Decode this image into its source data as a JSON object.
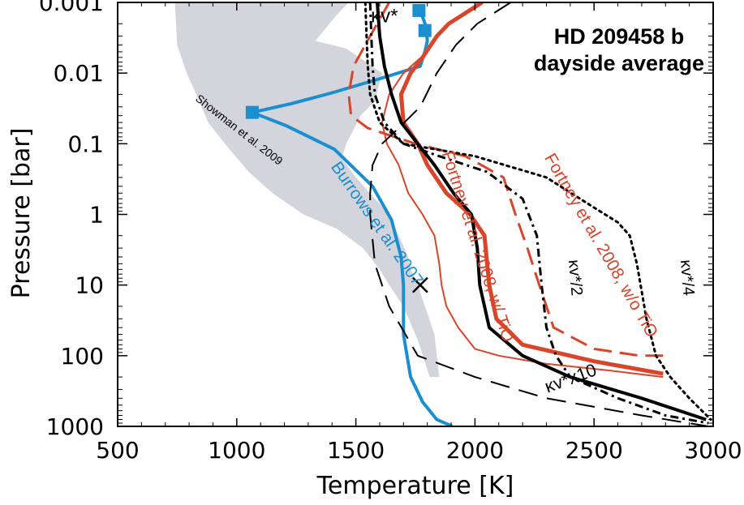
{
  "chart_data": {
    "type": "line",
    "title": "HD 209458 b",
    "subtitle": "dayside average",
    "xlabel": "Temperature [K]",
    "ylabel": "Pressure [bar]",
    "xlim": [
      500,
      3000
    ],
    "ylim": [
      0.001,
      1000
    ],
    "yscale": "log",
    "y_reversed": true,
    "xticks": [
      500,
      1000,
      1500,
      2000,
      2500,
      3000
    ],
    "xtick_labels": [
      "500",
      "1000",
      "1500",
      "2000",
      "2500",
      "3000"
    ],
    "yticks": [
      0.001,
      0.01,
      0.1,
      1,
      10,
      100,
      1000
    ],
    "ytick_labels": [
      "0.001",
      "0.01",
      "0.1",
      "1",
      "10",
      "100",
      "1000"
    ],
    "grid": false,
    "legend": "none",
    "colors": {
      "red": "#d9452a",
      "blue": "#1a8fd0",
      "black": "#000000",
      "gray": "#d4d4dc"
    },
    "shaded_region": {
      "label": "Showman et al. 2009",
      "color": "#d4d4dc",
      "polygon": [
        [
          740,
          0.001
        ],
        [
          1470,
          0.001
        ],
        [
          1420,
          0.0015
        ],
        [
          1330,
          0.0035
        ],
        [
          1460,
          0.0045
        ],
        [
          1610,
          0.01
        ],
        [
          1580,
          0.025
        ],
        [
          1520,
          0.04
        ],
        [
          1460,
          0.1
        ],
        [
          1440,
          0.16
        ],
        [
          1500,
          0.3
        ],
        [
          1580,
          0.6
        ],
        [
          1640,
          1
        ],
        [
          1680,
          2
        ],
        [
          1720,
          4
        ],
        [
          1730,
          6
        ],
        [
          1760,
          10
        ],
        [
          1800,
          25
        ],
        [
          1830,
          50
        ],
        [
          1840,
          100
        ],
        [
          1850,
          200
        ],
        [
          1810,
          200
        ],
        [
          1760,
          60
        ],
        [
          1700,
          20
        ],
        [
          1640,
          10
        ],
        [
          1600,
          6
        ],
        [
          1530,
          3
        ],
        [
          1420,
          1.6
        ],
        [
          1280,
          1
        ],
        [
          1150,
          0.5
        ],
        [
          1050,
          0.25
        ],
        [
          950,
          0.1
        ],
        [
          880,
          0.05
        ],
        [
          830,
          0.02
        ],
        [
          790,
          0.01
        ],
        [
          750,
          0.004
        ]
      ]
    },
    "series": [
      {
        "name": "Burrows et al. 2007",
        "color": "#1a8fd0",
        "width": 4,
        "dash": "solid",
        "x": [
          1770,
          1795,
          1800,
          1790,
          1770,
          1600,
          1400,
          1230,
          1065,
          1210,
          1410,
          1570,
          1650,
          1690,
          1700,
          1700,
          1730,
          1780,
          1840,
          1905
        ],
        "y": [
          0.0013,
          0.0022,
          0.0035,
          0.005,
          0.008,
          0.012,
          0.019,
          0.027,
          0.036,
          0.056,
          0.12,
          0.4,
          1.2,
          4,
          10,
          50,
          200,
          450,
          800,
          1000
        ]
      },
      {
        "name": "Fortney et al. 2008, w/ TiO",
        "color": "#d9452a",
        "width": 2,
        "dash": "solid",
        "x": [
          1800,
          1700,
          1640,
          1610,
          1630,
          1680,
          1720,
          1780,
          1830,
          1850,
          1860,
          1880,
          1930,
          2000,
          2100,
          2300,
          2550,
          2790
        ],
        "y": [
          0.005,
          0.01,
          0.02,
          0.05,
          0.1,
          0.2,
          0.5,
          1,
          2,
          5,
          10,
          20,
          40,
          80,
          100,
          130,
          160,
          200
        ]
      },
      {
        "name": "",
        "color": "#d9452a",
        "width": 5,
        "dash": "solid",
        "x": [
          2030,
          1890,
          1840,
          1780,
          1730,
          1690,
          1700,
          1760,
          1800,
          1880,
          1980,
          2040,
          2060,
          2090,
          2200,
          2500,
          2790
        ],
        "y": [
          0.001,
          0.002,
          0.003,
          0.006,
          0.01,
          0.02,
          0.05,
          0.1,
          0.2,
          0.5,
          1,
          2,
          10,
          30,
          70,
          120,
          180
        ]
      },
      {
        "name": "Fortney et al. 2008, w/o TiO",
        "color": "#d9452a",
        "width": 3,
        "dash": "dashed",
        "x": [
          1640,
          1560,
          1490,
          1470,
          1480,
          1550,
          1750,
          1960,
          2120,
          2170,
          2220,
          2270,
          2330,
          2500,
          2690,
          2790
        ],
        "y": [
          0.001,
          0.003,
          0.008,
          0.02,
          0.04,
          0.06,
          0.1,
          0.15,
          0.3,
          1,
          3,
          10,
          40,
          80,
          100,
          100
        ]
      },
      {
        "name": "κv*",
        "color": "#000000",
        "width": 4,
        "dash": "solid",
        "x": [
          1590,
          1600,
          1620,
          1650,
          1690,
          1760,
          1830,
          1910,
          1985,
          2010,
          2020,
          2060,
          2200,
          2400,
          2700,
          2970
        ],
        "y": [
          0.001,
          0.003,
          0.008,
          0.02,
          0.05,
          0.1,
          0.2,
          0.5,
          1,
          3,
          10,
          40,
          100,
          200,
          400,
          800
        ]
      },
      {
        "name": "κv*x10",
        "color": "#000000",
        "width": 2,
        "dash": "longdash",
        "x": [
          2150,
          2010,
          1920,
          1840,
          1770,
          1680,
          1610,
          1570,
          1560,
          1560,
          1580,
          1640,
          1760,
          2000,
          2300,
          2700,
          2980
        ],
        "y": [
          0.001,
          0.002,
          0.004,
          0.01,
          0.03,
          0.06,
          0.1,
          0.2,
          0.5,
          1,
          5,
          20,
          100,
          200,
          400,
          700,
          1000
        ]
      },
      {
        "name": "κv*/2",
        "color": "#000000",
        "width": 3,
        "dash": "dashdot",
        "x": [
          1560,
          1565,
          1570,
          1580,
          1620,
          1700,
          1850,
          2050,
          2200,
          2260,
          2280,
          2300,
          2340,
          2400,
          2600,
          2800,
          2980
        ],
        "y": [
          0.001,
          0.003,
          0.008,
          0.02,
          0.05,
          0.1,
          0.15,
          0.25,
          0.6,
          2,
          10,
          40,
          100,
          200,
          400,
          700,
          900
        ]
      },
      {
        "name": "κv*/4",
        "color": "#000000",
        "width": 3,
        "dash": "dotted",
        "x": [
          1540,
          1545,
          1550,
          1560,
          1600,
          1700,
          2000,
          2300,
          2500,
          2600,
          2650,
          2680,
          2720,
          2760,
          2820,
          2900,
          2990
        ],
        "y": [
          0.001,
          0.003,
          0.008,
          0.02,
          0.05,
          0.1,
          0.15,
          0.3,
          0.8,
          1.3,
          2,
          5,
          30,
          100,
          200,
          400,
          800
        ]
      }
    ],
    "markers": [
      {
        "shape": "square",
        "color": "#1a8fd0",
        "x": 1765,
        "y": 0.0013
      },
      {
        "shape": "square",
        "color": "#1a8fd0",
        "x": 1790,
        "y": 0.0025
      },
      {
        "shape": "square",
        "color": "#1a8fd0",
        "x": 1065,
        "y": 0.036
      },
      {
        "shape": "cross",
        "color": "#000000",
        "x": 1770,
        "y": 10
      }
    ],
    "annotations": [
      {
        "text": "Showman et al. 2009",
        "color": "#000000",
        "size": 14,
        "angle": 38,
        "x": 1000,
        "y": 0.07
      },
      {
        "text": "Burrows et al. 2007",
        "color": "#1a8fd0",
        "size": 21,
        "angle": 55,
        "x": 1570,
        "y": 1.5
      },
      {
        "text": "Fortney et al. 2008, w/ TiO",
        "color": "#d9452a",
        "size": 21,
        "angle": 72,
        "x": 1990,
        "y": 3
      },
      {
        "text": "Fortney et al. 2008, w/o TiO",
        "color": "#d9452a",
        "size": 21,
        "angle": 60,
        "x": 2510,
        "y": 3
      },
      {
        "text": "κv*",
        "color": "#000000",
        "size": 24,
        "angle": 0,
        "x": 1620,
        "y": 0.0019
      },
      {
        "text": "κv*/2",
        "color": "#000000",
        "size": 20,
        "angle": 85,
        "x": 2400,
        "y": 8
      },
      {
        "text": "κv*/4",
        "color": "#000000",
        "size": 20,
        "angle": 85,
        "x": 2870,
        "y": 8
      },
      {
        "text": "κv*x10",
        "color": "#000000",
        "size": 22,
        "angle": -20,
        "x": 2410,
        "y": 250
      }
    ]
  }
}
